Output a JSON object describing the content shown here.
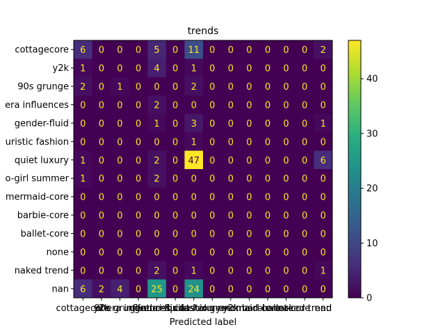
{
  "chart_data": {
    "type": "heatmap",
    "title": "trends",
    "xlabel": "Predicted label",
    "ylabel": "",
    "row_labels": [
      "cottagecore",
      "y2k",
      "90s grunge",
      "era influences",
      "gender-fluid",
      "uristic fashion",
      "quiet luxury",
      "o-girl summer",
      "mermaid-core",
      "barbie-core",
      "ballet-core",
      "none",
      "naked trend",
      "nan"
    ],
    "col_labels": [
      "cottagecore",
      "y2k",
      "90s grunge",
      "era influences",
      "gender-fluid",
      "futuristic fashion",
      "quiet luxury",
      "coastal grandma",
      "y2k",
      "mermaid-core",
      "barbie-core",
      "ballet-core",
      "naked trend",
      "nan"
    ],
    "values": [
      [
        6,
        0,
        0,
        0,
        5,
        0,
        11,
        0,
        0,
        0,
        0,
        0,
        0,
        2
      ],
      [
        1,
        0,
        0,
        0,
        4,
        0,
        1,
        0,
        0,
        0,
        0,
        0,
        0,
        0
      ],
      [
        2,
        0,
        1,
        0,
        0,
        0,
        2,
        0,
        0,
        0,
        0,
        0,
        0,
        0
      ],
      [
        0,
        0,
        0,
        0,
        2,
        0,
        0,
        0,
        0,
        0,
        0,
        0,
        0,
        0
      ],
      [
        0,
        0,
        0,
        0,
        1,
        0,
        3,
        0,
        0,
        0,
        0,
        0,
        0,
        1
      ],
      [
        0,
        0,
        0,
        0,
        0,
        0,
        1,
        0,
        0,
        0,
        0,
        0,
        0,
        0
      ],
      [
        1,
        0,
        0,
        0,
        2,
        0,
        47,
        0,
        0,
        0,
        0,
        0,
        0,
        6
      ],
      [
        1,
        0,
        0,
        0,
        2,
        0,
        0,
        0,
        0,
        0,
        0,
        0,
        0,
        0
      ],
      [
        0,
        0,
        0,
        0,
        0,
        0,
        0,
        0,
        0,
        0,
        0,
        0,
        0,
        0
      ],
      [
        0,
        0,
        0,
        0,
        0,
        0,
        0,
        0,
        0,
        0,
        0,
        0,
        0,
        0
      ],
      [
        0,
        0,
        0,
        0,
        0,
        0,
        0,
        0,
        0,
        0,
        0,
        0,
        0,
        0
      ],
      [
        0,
        0,
        0,
        0,
        0,
        0,
        0,
        0,
        0,
        0,
        0,
        0,
        0,
        0
      ],
      [
        0,
        0,
        0,
        0,
        2,
        0,
        1,
        0,
        0,
        0,
        0,
        0,
        0,
        1
      ],
      [
        6,
        2,
        4,
        0,
        25,
        0,
        24,
        0,
        0,
        0,
        0,
        0,
        0,
        0
      ]
    ],
    "vmin": 0,
    "vmax": 47,
    "colormap": "viridis",
    "colorbar_ticks": [
      0,
      10,
      20,
      30,
      40
    ],
    "grid": false
  }
}
